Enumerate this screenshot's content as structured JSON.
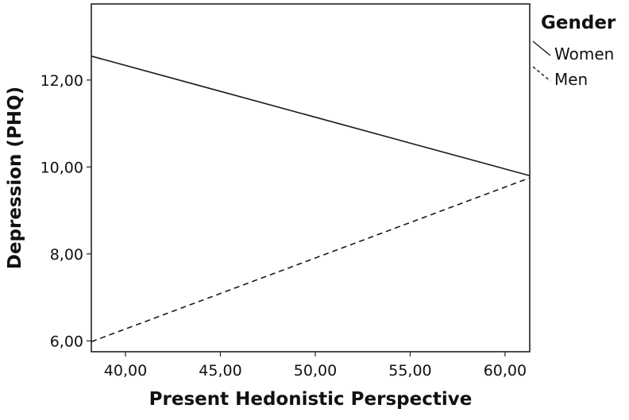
{
  "chart_data": {
    "type": "line",
    "title": "",
    "xlabel": "Present Hedonistic Perspective",
    "ylabel": "Depression (PHQ)",
    "xlim": [
      38.2,
      61.3
    ],
    "ylim": [
      5.75,
      13.75
    ],
    "x_ticks": [
      40,
      45,
      50,
      55,
      60
    ],
    "x_tick_labels": [
      "40,00",
      "45,00",
      "50,00",
      "55,00",
      "60,00"
    ],
    "y_ticks": [
      6,
      8,
      10,
      12
    ],
    "y_tick_labels": [
      "6,00",
      "8,00",
      "10,00",
      "12,00"
    ],
    "grid": false,
    "legend": {
      "title": "Gender",
      "position": "top-right, outside plot"
    },
    "series": [
      {
        "name": "Women",
        "style": "solid",
        "color": "#1a1a1a",
        "points": [
          [
            38.2,
            12.55
          ],
          [
            61.3,
            9.8
          ]
        ]
      },
      {
        "name": "Men",
        "style": "dashed",
        "color": "#1a1a1a",
        "points": [
          [
            38.2,
            5.98
          ],
          [
            61.3,
            9.75
          ]
        ]
      }
    ]
  }
}
